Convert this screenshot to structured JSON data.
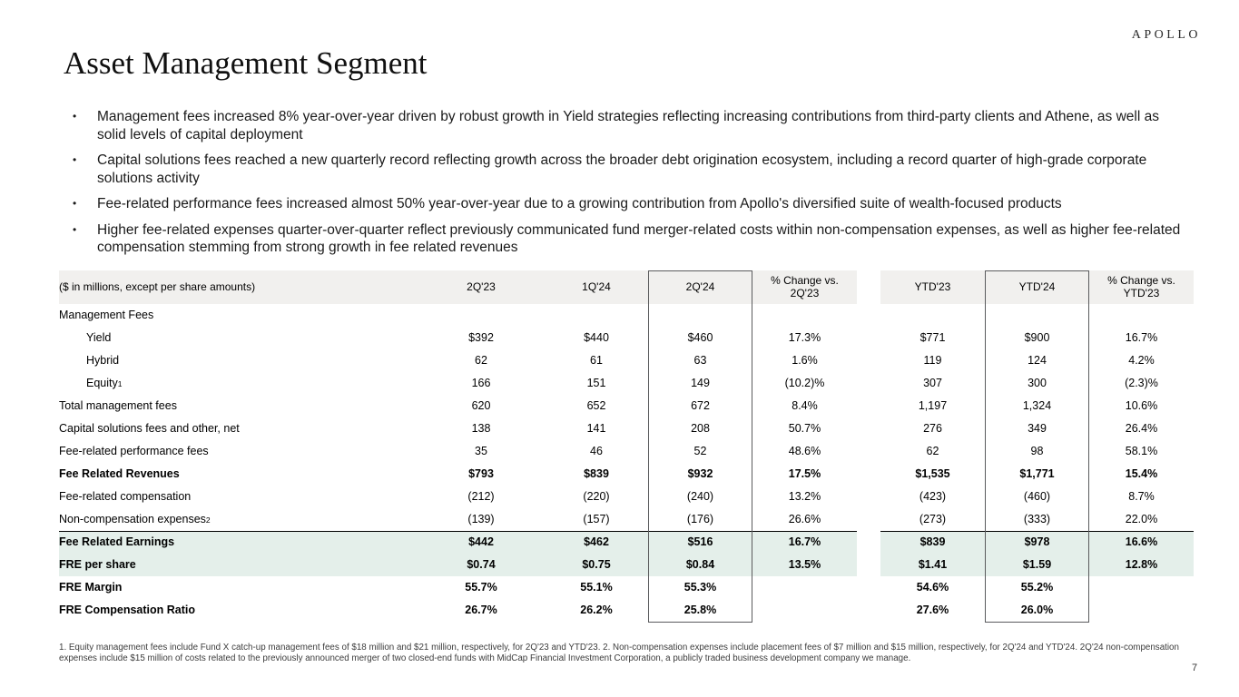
{
  "logo": "APOLLO",
  "title": "Asset Management Segment",
  "bullets": [
    "Management fees increased 8% year-over-year driven by robust growth in Yield strategies reflecting increasing contributions from third-party clients and Athene, as well as solid levels of capital deployment",
    "Capital solutions fees reached a new quarterly record reflecting growth across the broader debt origination ecosystem, including a record quarter of high-grade corporate solutions activity",
    "Fee-related performance fees increased almost 50% year-over-year due to a growing contribution from Apollo's diversified suite of wealth-focused products",
    "Higher fee-related expenses quarter-over-quarter reflect previously communicated fund merger-related costs within non-compensation expenses, as well as higher fee-related compensation stemming from strong growth in fee related revenues"
  ],
  "table": {
    "caption": "($ in millions, except per share amounts)",
    "columns": [
      "2Q'23",
      "1Q'24",
      "2Q'24",
      "% Change vs. 2Q'23",
      "YTD'23",
      "YTD'24",
      "% Change vs. YTD'23"
    ],
    "rows": [
      {
        "label": "Management Fees",
        "values": [
          "",
          "",
          "",
          "",
          "",
          "",
          ""
        ]
      },
      {
        "label": "Yield",
        "indent": true,
        "values": [
          "$392",
          "$440",
          "$460",
          "17.3%",
          "$771",
          "$900",
          "16.7%"
        ]
      },
      {
        "label": "Hybrid",
        "indent": true,
        "values": [
          "62",
          "61",
          "63",
          "1.6%",
          "119",
          "124",
          "4.2%"
        ]
      },
      {
        "label": "Equity",
        "sup": "1",
        "indent": true,
        "values": [
          "166",
          "151",
          "149",
          "(10.2)%",
          "307",
          "300",
          "(2.3)%"
        ]
      },
      {
        "label": "Total management fees",
        "values": [
          "620",
          "652",
          "672",
          "8.4%",
          "1,197",
          "1,324",
          "10.6%"
        ]
      },
      {
        "label": "Capital solutions fees and other, net",
        "values": [
          "138",
          "141",
          "208",
          "50.7%",
          "276",
          "349",
          "26.4%"
        ]
      },
      {
        "label": "Fee-related performance fees",
        "values": [
          "35",
          "46",
          "52",
          "48.6%",
          "62",
          "98",
          "58.1%"
        ]
      },
      {
        "label": "Fee Related Revenues",
        "bold": true,
        "values": [
          "$793",
          "$839",
          "$932",
          "17.5%",
          "$1,535",
          "$1,771",
          "15.4%"
        ]
      },
      {
        "label": "Fee-related compensation",
        "values": [
          "(212)",
          "(220)",
          "(240)",
          "13.2%",
          "(423)",
          "(460)",
          "8.7%"
        ]
      },
      {
        "label": "Non-compensation expenses",
        "sup": "2",
        "values": [
          "(139)",
          "(157)",
          "(176)",
          "26.6%",
          "(273)",
          "(333)",
          "22.0%"
        ]
      },
      {
        "label": "Fee Related Earnings",
        "bold": true,
        "highlight": true,
        "topborder": true,
        "values": [
          "$442",
          "$462",
          "$516",
          "16.7%",
          "$839",
          "$978",
          "16.6%"
        ]
      },
      {
        "label": "FRE per share",
        "bold": true,
        "highlight": true,
        "values": [
          "$0.74",
          "$0.75",
          "$0.84",
          "13.5%",
          "$1.41",
          "$1.59",
          "12.8%"
        ]
      },
      {
        "label": "FRE Margin",
        "bold": true,
        "values": [
          "55.7%",
          "55.1%",
          "55.3%",
          "",
          "54.6%",
          "55.2%",
          ""
        ]
      },
      {
        "label": "FRE Compensation Ratio",
        "bold": true,
        "values": [
          "26.7%",
          "26.2%",
          "25.8%",
          "",
          "27.6%",
          "26.0%",
          ""
        ]
      }
    ]
  },
  "footnote": "1. Equity management fees include Fund X catch-up management fees of $18 million and $21 million, respectively, for 2Q'23 and YTD'23. 2. Non-compensation expenses include placement fees of $7 million and $15 million, respectively, for 2Q'24 and YTD'24. 2Q'24 non-compensation expenses include $15 million of costs related to the previously announced merger of two closed-end funds with MidCap Financial Investment Corporation, a publicly traded business development company we manage.",
  "page_number": "7",
  "colors": {
    "header_bg": "#f1f0ee",
    "highlight_bg": "#e4efea",
    "box_border": "#5a5b5d"
  }
}
